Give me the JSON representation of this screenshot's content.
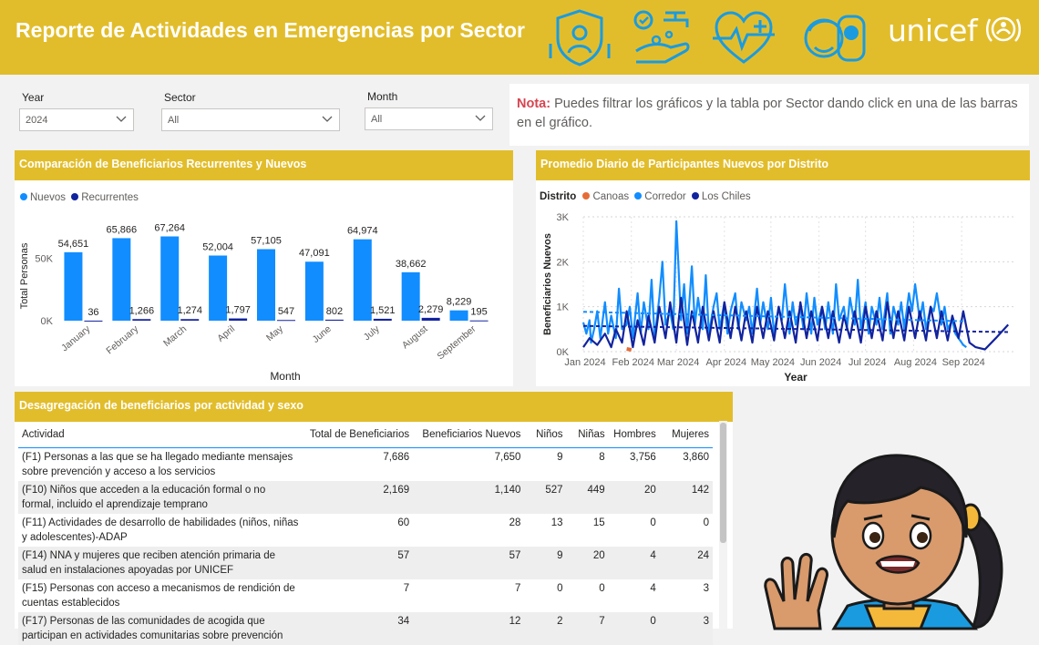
{
  "header": {
    "title": "Reporte de Actividades en Emergencias por Sector",
    "logo_text": "unicef",
    "icons": [
      "shield-person-icon",
      "handwashing-icon",
      "heart-pulse-icon",
      "family-icon"
    ]
  },
  "filters": {
    "year": {
      "label": "Year",
      "value": "2024"
    },
    "sector": {
      "label": "Sector",
      "value": "All"
    },
    "month": {
      "label": "Month",
      "value": "All"
    }
  },
  "note": {
    "prefix": "Nota:",
    "text": " Puedes filtrar los gráficos y la tabla por Sector dando click en una de las barras en el gráfico."
  },
  "colors": {
    "header": "#e2bd2b",
    "nuevos": "#118dff",
    "recurrentes": "#12239e",
    "canoas": "#e66c37",
    "corredor": "#118dff",
    "los_chiles": "#12239e",
    "note_label": "#d64550"
  },
  "chart_data": [
    {
      "type": "bar",
      "title": "Comparación de Beneficiarios Recurrentes y Nuevos",
      "xlabel": "Month",
      "ylabel": "Total Personas",
      "categories": [
        "January",
        "February",
        "March",
        "April",
        "May",
        "June",
        "July",
        "August",
        "September"
      ],
      "series": [
        {
          "name": "Nuevos",
          "values": [
            54651,
            65866,
            67264,
            52004,
            57105,
            47091,
            64974,
            38662,
            8229
          ]
        },
        {
          "name": "Recurrentes",
          "values": [
            36,
            1266,
            1274,
            1797,
            547,
            802,
            1521,
            2279,
            195
          ]
        }
      ],
      "data_labels": {
        "Nuevos": [
          "54,651",
          "65,866",
          "67,264",
          "52,004",
          "57,105",
          "47,091",
          "64,974",
          "38,662",
          "8,229"
        ],
        "Recurrentes": [
          "36",
          "1,266",
          "1,274",
          "1,797",
          "547",
          "802",
          "1,521",
          "2,279",
          "195"
        ]
      },
      "yticks": [
        "0K",
        "50K"
      ],
      "ylim": [
        0,
        72000
      ],
      "legend": "top-left",
      "grid": false
    },
    {
      "type": "line",
      "title": "Promedio Diario de Participantes Nuevos por Distrito",
      "legend_title": "Distrito",
      "xlabel": "Year",
      "ylabel": "Beneficiarios Nuevos",
      "xticks": [
        "Jan 2024",
        "Feb 2024",
        "Mar 2024",
        "Apr 2024",
        "May 2024",
        "Jun 2024",
        "Jul 2024",
        "Aug 2024",
        "Sep 2024"
      ],
      "yticks": [
        "0K",
        "1K",
        "2K",
        "3K"
      ],
      "ylim": [
        0,
        3000
      ],
      "xlim": [
        "2024-01-01",
        "2024-10-05"
      ],
      "grid": true,
      "legend": "top-left",
      "trend_lines": true,
      "series": [
        {
          "name": "Canoas",
          "x": [
            "2024-01-29",
            "2024-02-01"
          ],
          "y": [
            60,
            40
          ]
        },
        {
          "name": "Corredor",
          "x": [
            "2024-01-01",
            "2024-01-03",
            "2024-01-05",
            "2024-01-06",
            "2024-01-08",
            "2024-01-10",
            "2024-01-12",
            "2024-01-15",
            "2024-01-17",
            "2024-01-19",
            "2024-01-22",
            "2024-01-24",
            "2024-01-26",
            "2024-01-29",
            "2024-01-31",
            "2024-02-02",
            "2024-02-05",
            "2024-02-07",
            "2024-02-09",
            "2024-02-12",
            "2024-02-14",
            "2024-02-16",
            "2024-02-19",
            "2024-02-21",
            "2024-02-23",
            "2024-02-26",
            "2024-02-28",
            "2024-03-01",
            "2024-03-04",
            "2024-03-06",
            "2024-03-08",
            "2024-03-11",
            "2024-03-13",
            "2024-03-15",
            "2024-03-18",
            "2024-03-20",
            "2024-03-22",
            "2024-03-25",
            "2024-03-27",
            "2024-03-29",
            "2024-04-01",
            "2024-04-03",
            "2024-04-05",
            "2024-04-08",
            "2024-04-10",
            "2024-04-12",
            "2024-04-15",
            "2024-04-17",
            "2024-04-19",
            "2024-04-22",
            "2024-04-24",
            "2024-04-26",
            "2024-04-29",
            "2024-05-01",
            "2024-05-03",
            "2024-05-06",
            "2024-05-08",
            "2024-05-10",
            "2024-05-13",
            "2024-05-15",
            "2024-05-17",
            "2024-05-20",
            "2024-05-22",
            "2024-05-24",
            "2024-05-27",
            "2024-05-29",
            "2024-05-31",
            "2024-06-03",
            "2024-06-05",
            "2024-06-07",
            "2024-06-10",
            "2024-06-12",
            "2024-06-14",
            "2024-06-17",
            "2024-06-19",
            "2024-06-21",
            "2024-06-24",
            "2024-06-26",
            "2024-06-28",
            "2024-07-01",
            "2024-07-03",
            "2024-07-05",
            "2024-07-08",
            "2024-07-10",
            "2024-07-12",
            "2024-07-15",
            "2024-07-17",
            "2024-07-19",
            "2024-07-22",
            "2024-07-24",
            "2024-07-26",
            "2024-07-29",
            "2024-07-31",
            "2024-08-02",
            "2024-08-05",
            "2024-08-07",
            "2024-08-09",
            "2024-08-12",
            "2024-08-14",
            "2024-08-16",
            "2024-08-19",
            "2024-08-21",
            "2024-08-23",
            "2024-08-26",
            "2024-08-28",
            "2024-08-30",
            "2024-09-02",
            "2024-09-04"
          ],
          "y": [
            650,
            400,
            700,
            200,
            500,
            900,
            300,
            1100,
            400,
            800,
            300,
            1400,
            500,
            600,
            1000,
            300,
            1300,
            400,
            1100,
            500,
            1600,
            300,
            1200,
            2000,
            600,
            900,
            500,
            2900,
            700,
            1500,
            400,
            1900,
            600,
            1200,
            500,
            1700,
            400,
            1000,
            1300,
            500,
            1100,
            400,
            900,
            1300,
            500,
            1100,
            700,
            1000,
            400,
            1400,
            600,
            1100,
            500,
            1200,
            400,
            1000,
            700,
            1500,
            400,
            1100,
            600,
            1000,
            500,
            1300,
            400,
            1200,
            600,
            1000,
            500,
            1100,
            400,
            1500,
            700,
            1000,
            500,
            1200,
            600,
            1600,
            500,
            1100,
            400,
            1000,
            600,
            1200,
            500,
            1300,
            400,
            1000,
            600,
            1100,
            500,
            1300,
            900,
            1500,
            700,
            1100,
            500,
            1000,
            900,
            1300,
            600,
            1000,
            500,
            700,
            400,
            300,
            150,
            100
          ]
        },
        {
          "name": "Los Chiles",
          "x": [
            "2024-01-01",
            "2024-01-05",
            "2024-01-10",
            "2024-01-15",
            "2024-01-19",
            "2024-01-22",
            "2024-01-26",
            "2024-01-29",
            "2024-02-02",
            "2024-02-05",
            "2024-02-09",
            "2024-02-12",
            "2024-02-16",
            "2024-02-19",
            "2024-02-23",
            "2024-02-26",
            "2024-03-01",
            "2024-03-04",
            "2024-03-08",
            "2024-03-11",
            "2024-03-15",
            "2024-03-18",
            "2024-03-22",
            "2024-03-25",
            "2024-03-29",
            "2024-04-01",
            "2024-04-05",
            "2024-04-08",
            "2024-04-12",
            "2024-04-15",
            "2024-04-19",
            "2024-04-22",
            "2024-04-26",
            "2024-04-29",
            "2024-05-03",
            "2024-05-06",
            "2024-05-10",
            "2024-05-13",
            "2024-05-17",
            "2024-05-20",
            "2024-05-24",
            "2024-05-27",
            "2024-05-31",
            "2024-06-03",
            "2024-06-07",
            "2024-06-10",
            "2024-06-14",
            "2024-06-17",
            "2024-06-21",
            "2024-06-24",
            "2024-06-28",
            "2024-07-01",
            "2024-07-05",
            "2024-07-08",
            "2024-07-12",
            "2024-07-15",
            "2024-07-19",
            "2024-07-22",
            "2024-07-26",
            "2024-07-29",
            "2024-08-02",
            "2024-08-05",
            "2024-08-09",
            "2024-08-12",
            "2024-08-16",
            "2024-08-19",
            "2024-08-23",
            "2024-08-26",
            "2024-08-30",
            "2024-09-02",
            "2024-09-06",
            "2024-09-10",
            "2024-09-16",
            "2024-09-23",
            "2024-10-01"
          ],
          "y": [
            100,
            300,
            150,
            400,
            100,
            500,
            200,
            900,
            100,
            700,
            150,
            800,
            200,
            1000,
            300,
            1100,
            200,
            1200,
            150,
            900,
            200,
            1000,
            250,
            900,
            200,
            1100,
            300,
            1000,
            250,
            900,
            200,
            1000,
            300,
            900,
            250,
            1000,
            300,
            900,
            200,
            1100,
            300,
            900,
            250,
            1000,
            300,
            900,
            200,
            800,
            300,
            900,
            200,
            1000,
            300,
            900,
            250,
            1100,
            300,
            900,
            250,
            1000,
            300,
            900,
            250,
            1000,
            300,
            900,
            250,
            800,
            300,
            900,
            200,
            100,
            50,
            300,
            600
          ]
        }
      ]
    }
  ],
  "table": {
    "title": "Desagregación de beneficiarios por actividad y sexo",
    "columns": [
      "Actividad",
      "Total de Beneficiarios",
      "Beneficiarios Nuevos",
      "Niños",
      "Niñas",
      "Hombres",
      "Mujeres"
    ],
    "rows": [
      [
        "(F1) Personas a las que se ha llegado mediante mensajes sobre prevención y acceso a los servicios",
        "7,686",
        "7,650",
        "9",
        "8",
        "3,756",
        "3,860"
      ],
      [
        "(F10) Niños que acceden a la educación formal o no formal, incluido el aprendizaje temprano",
        "2,169",
        "1,140",
        "527",
        "449",
        "20",
        "142"
      ],
      [
        "(F11) Actividades de desarrollo de habilidades (niños, niñas y adolescentes)-ADAP",
        "60",
        "28",
        "13",
        "15",
        "0",
        "0"
      ],
      [
        "(F14) NNA y mujeres que reciben atención primaria de salud en instalaciones apoyadas por UNICEF",
        "57",
        "57",
        "9",
        "20",
        "4",
        "24"
      ],
      [
        "(F15) Personas con acceso a mecanismos de rendición de cuentas establecidos",
        "7",
        "7",
        "0",
        "0",
        "4",
        "3"
      ],
      [
        "(F17) Personas de las comunidades de acogida que participan en actividades comunitarias sobre prevención",
        "34",
        "12",
        "2",
        "7",
        "0",
        "3"
      ]
    ]
  }
}
